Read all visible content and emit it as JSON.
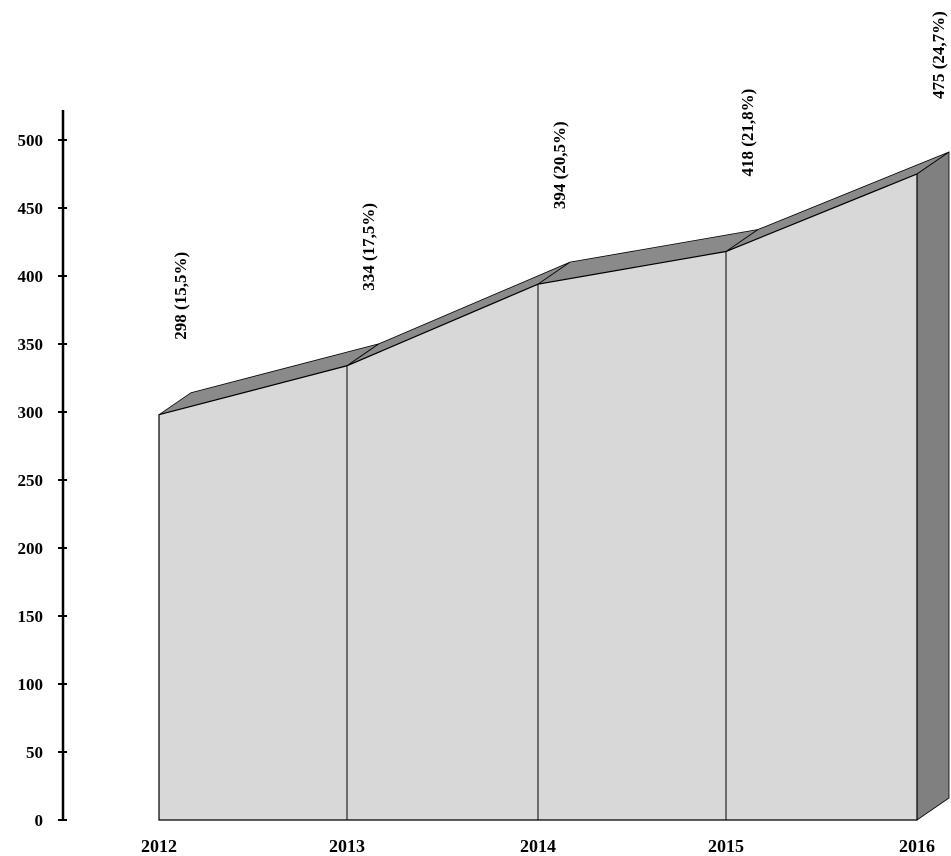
{
  "chart_data": {
    "type": "area",
    "style": "3d",
    "title": "",
    "xlabel": "",
    "ylabel": "",
    "categories": [
      "2012",
      "2013",
      "2014",
      "2015",
      "2016"
    ],
    "values": [
      298,
      334,
      394,
      418,
      475
    ],
    "data_labels": [
      "298 (15,5%)",
      "334 (17,5%)",
      "394 (20,5%)",
      "418 (21,8%)",
      "475 (24,7%)"
    ],
    "y_ticks": [
      "0",
      "50",
      "100",
      "150",
      "200",
      "250",
      "300",
      "350",
      "400",
      "450",
      "500"
    ],
    "ylim": [
      0,
      500
    ],
    "grid": false,
    "legend": "none",
    "colors": {
      "front": "#d8d8d8",
      "top": "#8a8a8a",
      "side": "#808080",
      "outline": "#000000"
    }
  }
}
